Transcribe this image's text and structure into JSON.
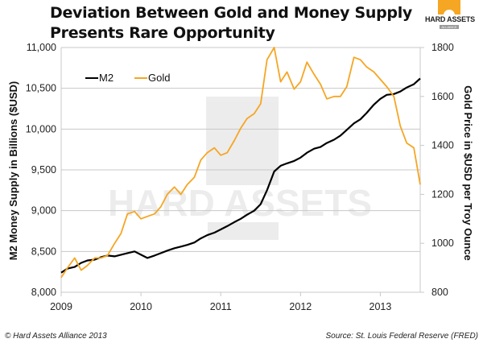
{
  "header": {
    "title_line1": "Deviation Between Gold and Money Supply",
    "title_line2": "Presents Rare Opportunity",
    "logo_name": "HARD ASSETS",
    "logo_sub": "ALLIANCE"
  },
  "watermark": {
    "text": "HARD ASSETS",
    "sub": "ALLIANCE"
  },
  "footer": {
    "copyright": "© Hard Assets Alliance 2013",
    "source": "Source: St. Louis Federal Reserve (FRED)"
  },
  "colors": {
    "m2": "#000000",
    "gold": "#f5a623",
    "grid": "#c8c8c8"
  },
  "chart_data": {
    "type": "line",
    "title": "Deviation Between Gold and Money Supply Presents Rare Opportunity",
    "xlabel": "",
    "ylabel": "M2 Money Supply in Billions ($USD)",
    "y2label": "Gold Price in $USD per Troy Ounce",
    "x_ticks": [
      "2009",
      "2010",
      "2011",
      "2012",
      "2013"
    ],
    "xlim": [
      2009.0,
      2013.5
    ],
    "ylim": [
      8000,
      11000
    ],
    "y_ticks": [
      "8,000",
      "8,500",
      "9,000",
      "9,500",
      "10,000",
      "10,500",
      "11,000"
    ],
    "y2lim": [
      800,
      1800
    ],
    "y2_ticks": [
      "800",
      "1000",
      "1200",
      "1400",
      "1600",
      "1800"
    ],
    "grid": true,
    "legend": {
      "position": "top-left",
      "entries": [
        "M2",
        "Gold"
      ]
    },
    "x": [
      2009.0,
      2009.08,
      2009.17,
      2009.25,
      2009.33,
      2009.42,
      2009.5,
      2009.58,
      2009.67,
      2009.75,
      2009.83,
      2009.92,
      2010.0,
      2010.08,
      2010.17,
      2010.25,
      2010.33,
      2010.42,
      2010.5,
      2010.58,
      2010.67,
      2010.75,
      2010.83,
      2010.92,
      2011.0,
      2011.08,
      2011.17,
      2011.25,
      2011.33,
      2011.42,
      2011.5,
      2011.58,
      2011.67,
      2011.75,
      2011.83,
      2011.92,
      2012.0,
      2012.08,
      2012.17,
      2012.25,
      2012.33,
      2012.42,
      2012.5,
      2012.58,
      2012.67,
      2012.75,
      2012.83,
      2012.92,
      2013.0,
      2013.08,
      2013.17,
      2013.25,
      2013.33,
      2013.42,
      2013.5
    ],
    "series": [
      {
        "name": "M2",
        "axis": "left",
        "values": [
          8240,
          8290,
          8310,
          8360,
          8390,
          8400,
          8430,
          8450,
          8440,
          8460,
          8480,
          8500,
          8460,
          8420,
          8450,
          8480,
          8510,
          8540,
          8560,
          8580,
          8610,
          8660,
          8700,
          8730,
          8770,
          8810,
          8860,
          8900,
          8950,
          9000,
          9080,
          9250,
          9480,
          9550,
          9580,
          9610,
          9650,
          9710,
          9760,
          9780,
          9830,
          9870,
          9920,
          9990,
          10070,
          10120,
          10200,
          10300,
          10370,
          10420,
          10430,
          10460,
          10510,
          10550,
          10620
        ]
      },
      {
        "name": "Gold",
        "axis": "right",
        "values": [
          860,
          900,
          940,
          890,
          910,
          940,
          940,
          950,
          1000,
          1040,
          1120,
          1130,
          1100,
          1110,
          1120,
          1150,
          1200,
          1230,
          1200,
          1240,
          1270,
          1340,
          1370,
          1390,
          1360,
          1370,
          1420,
          1470,
          1510,
          1530,
          1570,
          1750,
          1800,
          1660,
          1700,
          1630,
          1660,
          1740,
          1690,
          1650,
          1590,
          1600,
          1600,
          1640,
          1760,
          1750,
          1720,
          1700,
          1670,
          1640,
          1600,
          1480,
          1410,
          1390,
          1240
        ]
      }
    ]
  }
}
